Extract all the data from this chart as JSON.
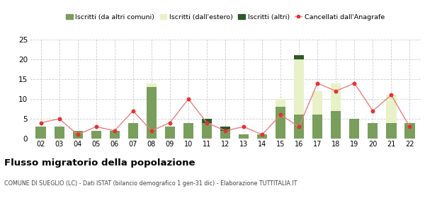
{
  "years": [
    "02",
    "03",
    "04",
    "05",
    "06",
    "07",
    "08",
    "09",
    "10",
    "11",
    "12",
    "13",
    "14",
    "15",
    "16",
    "17",
    "18",
    "19",
    "20",
    "21",
    "22"
  ],
  "iscritti_altri_comuni": [
    3,
    3,
    2,
    2,
    2,
    4,
    13,
    3,
    4,
    4,
    2,
    1,
    1,
    8,
    6,
    6,
    7,
    5,
    4,
    4,
    4
  ],
  "iscritti_estero": [
    0,
    0,
    0,
    0,
    0,
    0,
    1,
    0,
    0,
    0,
    0,
    0,
    0,
    2,
    14,
    6,
    7,
    0,
    0,
    7,
    0
  ],
  "iscritti_altri": [
    0,
    0,
    0,
    0,
    0,
    0,
    0,
    0,
    0,
    1,
    1,
    0,
    0,
    0,
    1,
    0,
    0,
    0,
    0,
    0,
    0
  ],
  "cancellati": [
    4,
    5,
    1,
    3,
    2,
    7,
    2,
    4,
    10,
    4,
    2,
    3,
    1,
    6,
    3,
    14,
    12,
    14,
    7,
    11,
    3
  ],
  "color_altri_comuni": "#7a9e5c",
  "color_estero": "#e8f1c8",
  "color_altri": "#2d5a27",
  "color_cancellati": "#e83030",
  "color_cancellati_line": "#e88080",
  "ylim": [
    0,
    25
  ],
  "yticks": [
    0,
    5,
    10,
    15,
    20,
    25
  ],
  "title": "Flusso migratorio della popolazione",
  "subtitle": "COMUNE DI SUEGLIO (LC) - Dati ISTAT (bilancio demografico 1 gen-31 dic) - Elaborazione TUTTITALIA.IT",
  "legend_labels": [
    "Iscritti (da altri comuni)",
    "Iscritti (dall'estero)",
    "Iscritti (altri)",
    "Cancellati dall'Anagrafe"
  ],
  "background_color": "#ffffff",
  "grid_color": "#cccccc"
}
